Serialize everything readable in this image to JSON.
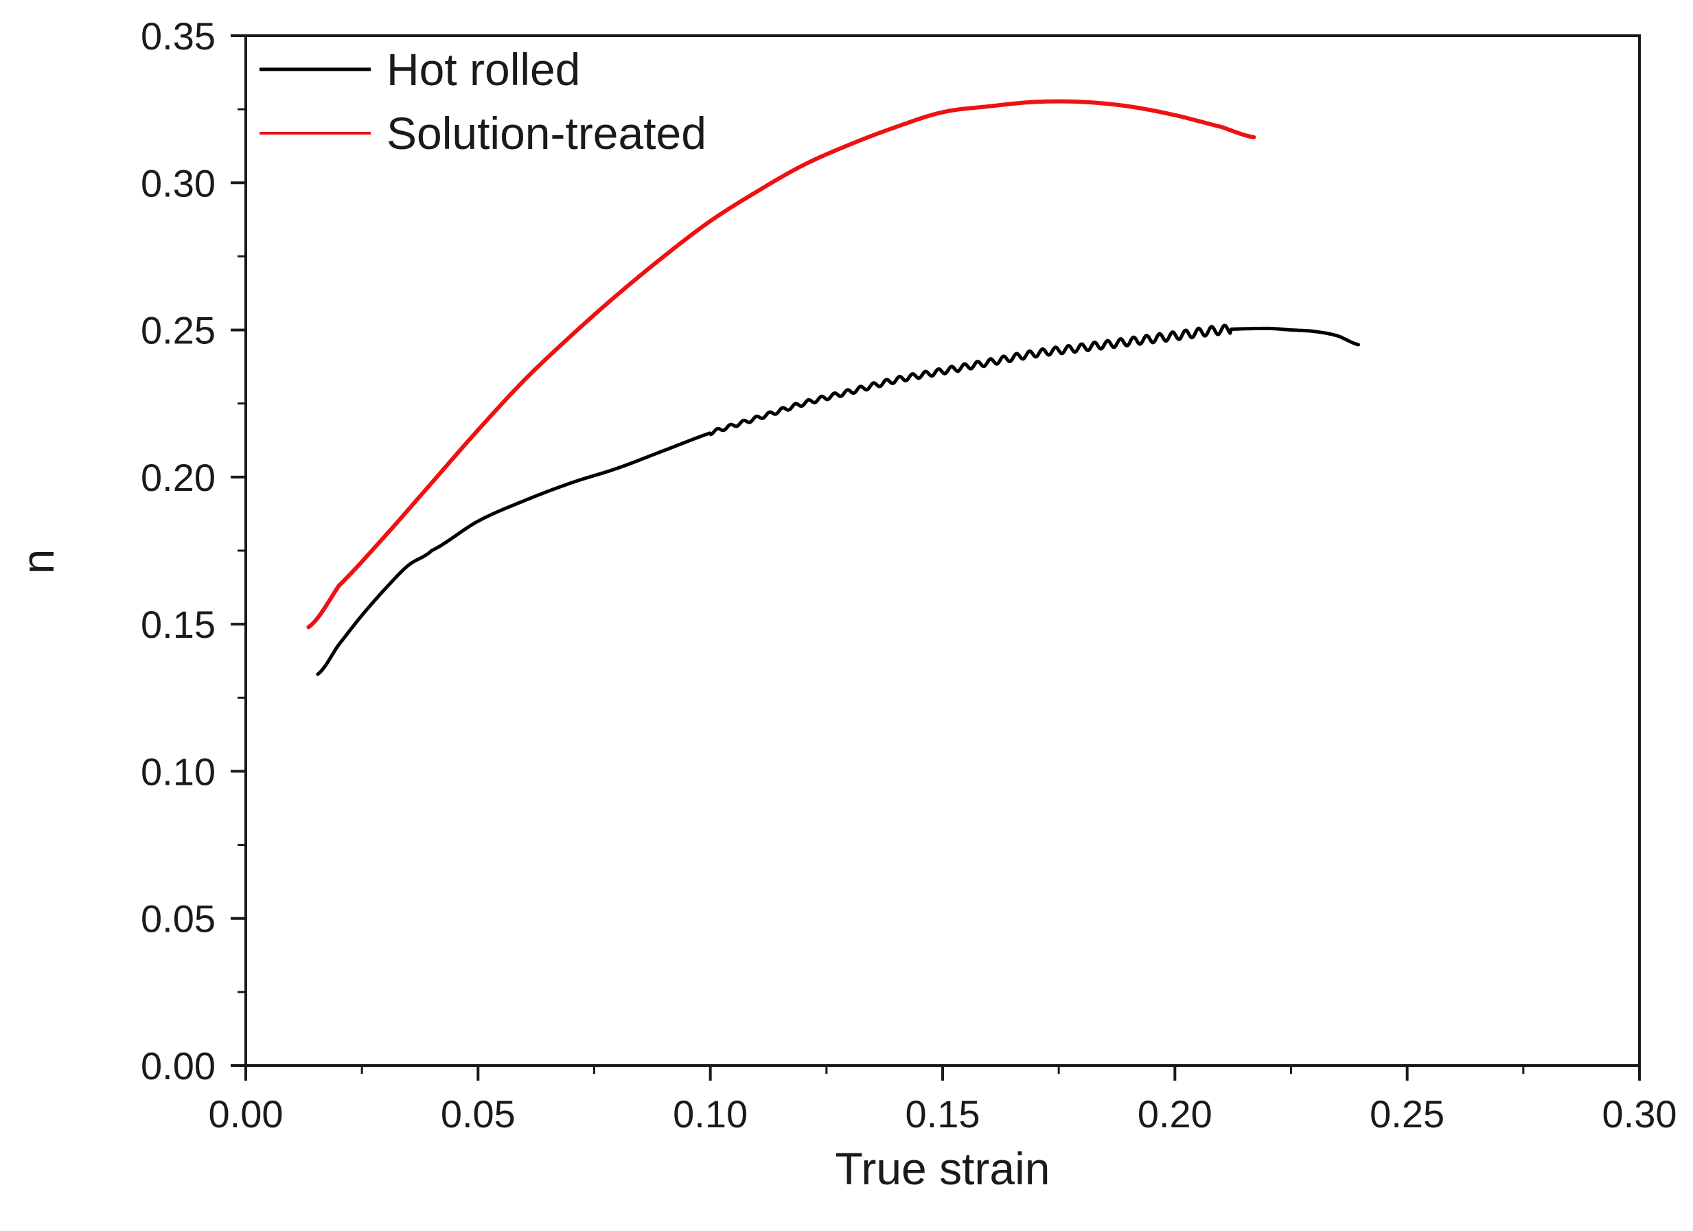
{
  "chart_data": {
    "type": "line",
    "title": "",
    "xlabel": "True strain",
    "ylabel": "n",
    "xlim": [
      0.0,
      0.3
    ],
    "ylim": [
      0.0,
      0.35
    ],
    "xticks": [
      "0.00",
      "0.05",
      "0.10",
      "0.15",
      "0.20",
      "0.25",
      "0.30"
    ],
    "yticks": [
      "0.00",
      "0.05",
      "0.10",
      "0.15",
      "0.20",
      "0.25",
      "0.30",
      "0.35"
    ],
    "grid": false,
    "legend_position": "top-left",
    "series": [
      {
        "name": "Hot rolled",
        "color": "#000000",
        "x": [
          0.0155,
          0.02,
          0.025,
          0.03,
          0.035,
          0.04,
          0.05,
          0.06,
          0.07,
          0.08,
          0.09,
          0.1,
          0.11,
          0.12,
          0.13,
          0.14,
          0.15,
          0.16,
          0.17,
          0.18,
          0.19,
          0.2,
          0.21,
          0.22,
          0.225,
          0.23,
          0.235,
          0.2395
        ],
        "y": [
          0.133,
          0.143,
          0.153,
          0.162,
          0.17,
          0.175,
          0.185,
          0.192,
          0.198,
          0.203,
          0.209,
          0.215,
          0.22,
          0.225,
          0.229,
          0.233,
          0.236,
          0.239,
          0.242,
          0.244,
          0.246,
          0.248,
          0.25,
          0.2505,
          0.25,
          0.2495,
          0.248,
          0.245
        ],
        "serrations": {
          "from_x": 0.1,
          "to_x": 0.212,
          "amplitude": 0.0015
        }
      },
      {
        "name": "Solution-treated",
        "color": "#ee1111",
        "x": [
          0.0135,
          0.02,
          0.03,
          0.04,
          0.05,
          0.06,
          0.07,
          0.08,
          0.09,
          0.1,
          0.11,
          0.12,
          0.13,
          0.14,
          0.15,
          0.16,
          0.17,
          0.18,
          0.19,
          0.2,
          0.21,
          0.217
        ],
        "y": [
          0.149,
          0.163,
          0.18,
          0.198,
          0.216,
          0.233,
          0.248,
          0.262,
          0.275,
          0.287,
          0.297,
          0.306,
          0.313,
          0.319,
          0.324,
          0.326,
          0.3275,
          0.3275,
          0.326,
          0.323,
          0.319,
          0.3155
        ]
      }
    ]
  }
}
